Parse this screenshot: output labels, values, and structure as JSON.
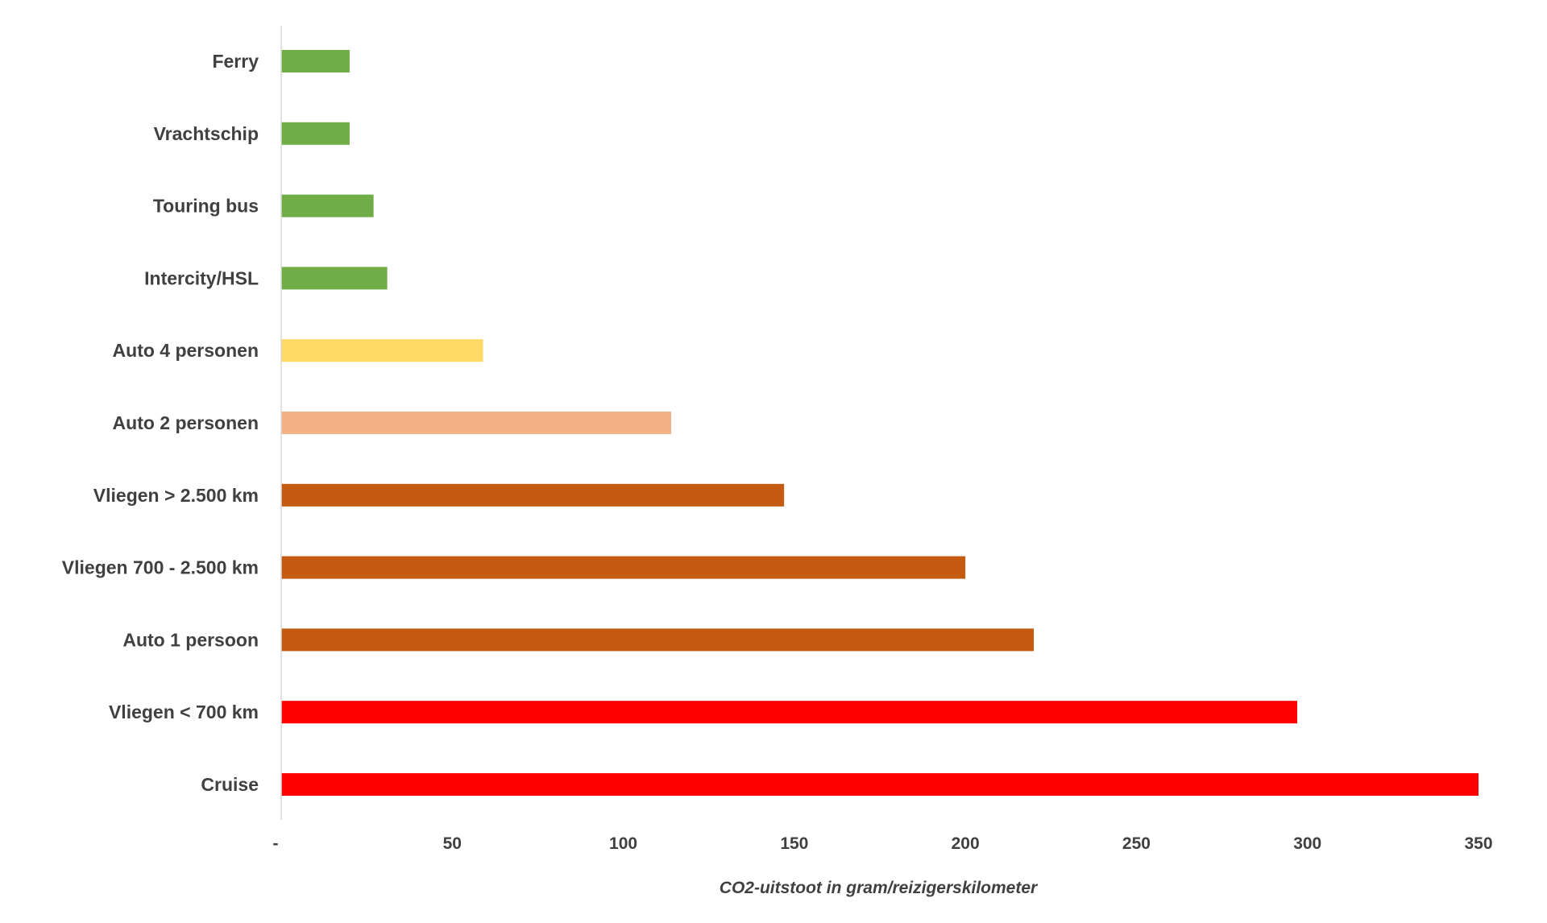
{
  "chart_data": {
    "type": "bar",
    "orientation": "horizontal",
    "title": "",
    "xlabel": "CO2-uitstoot in gram/reizigerskilometer",
    "ylabel": "",
    "xlim": [
      0,
      350
    ],
    "grid": false,
    "legend": "none",
    "x_ticks": [
      {
        "value": 0,
        "label": "-"
      },
      {
        "value": 50,
        "label": "50"
      },
      {
        "value": 100,
        "label": "100"
      },
      {
        "value": 150,
        "label": "150"
      },
      {
        "value": 200,
        "label": "200"
      },
      {
        "value": 250,
        "label": "250"
      },
      {
        "value": 300,
        "label": "300"
      },
      {
        "value": 350,
        "label": "350"
      }
    ],
    "bars": [
      {
        "category": "Ferry",
        "value": 20,
        "color": "#70AD47"
      },
      {
        "category": "Vrachtschip",
        "value": 20,
        "color": "#70AD47"
      },
      {
        "category": "Touring bus",
        "value": 27,
        "color": "#70AD47"
      },
      {
        "category": "Intercity/HSL",
        "value": 31,
        "color": "#70AD47"
      },
      {
        "category": "Auto 4 personen",
        "value": 59,
        "color": "#FFD966"
      },
      {
        "category": "Auto 2 personen",
        "value": 114,
        "color": "#F4B183"
      },
      {
        "category": "Vliegen > 2.500 km",
        "value": 147,
        "color": "#C55A11"
      },
      {
        "category": "Vliegen 700 - 2.500 km",
        "value": 200,
        "color": "#C55A11"
      },
      {
        "category": "Auto 1 persoon",
        "value": 220,
        "color": "#C55A11"
      },
      {
        "category": "Vliegen < 700 km",
        "value": 297,
        "color": "#FF0000"
      },
      {
        "category": "Cruise",
        "value": 350,
        "color": "#FF0000"
      }
    ],
    "axis_color": "#D9D9D9"
  }
}
